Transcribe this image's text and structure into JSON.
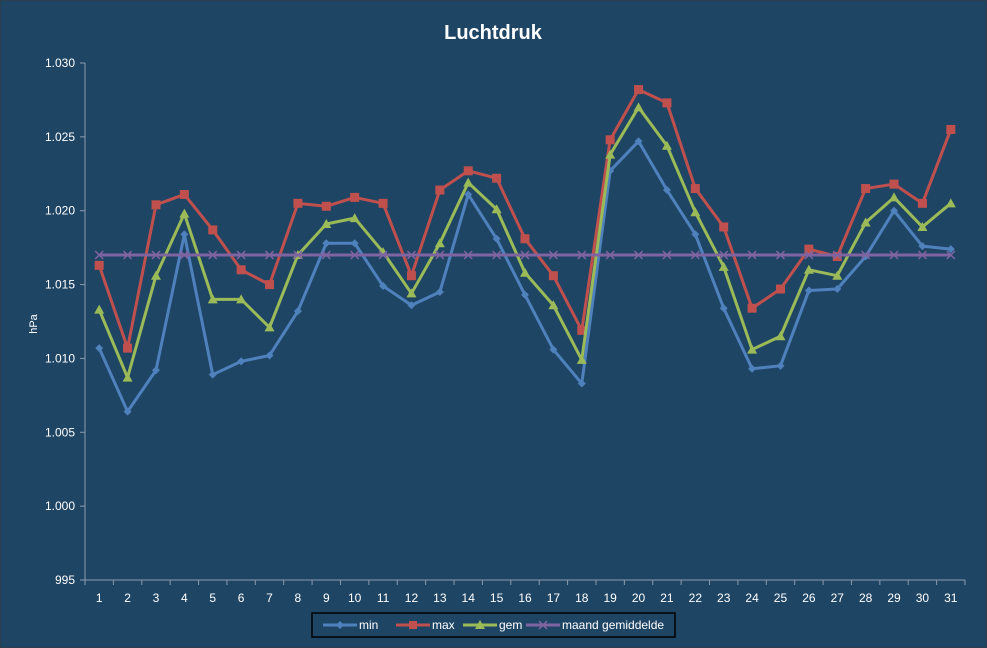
{
  "chart_data": {
    "type": "line",
    "title": "Luchtdruk",
    "xlabel": "",
    "ylabel": "hPa",
    "ylim": [
      995,
      1030
    ],
    "ytick_values": [
      995,
      1000,
      1005,
      1010,
      1015,
      1020,
      1025,
      1030
    ],
    "ytick_labels": [
      "995",
      "1.000",
      "1.005",
      "1.010",
      "1.015",
      "1.020",
      "1.025",
      "1.030"
    ],
    "categories": [
      "1",
      "2",
      "3",
      "4",
      "5",
      "6",
      "7",
      "8",
      "9",
      "10",
      "11",
      "12",
      "13",
      "14",
      "15",
      "16",
      "17",
      "18",
      "19",
      "20",
      "21",
      "22",
      "23",
      "24",
      "25",
      "26",
      "27",
      "28",
      "29",
      "30",
      "31"
    ],
    "grid": false,
    "legend_position": "bottom",
    "series": [
      {
        "name": "min",
        "color": "#4f81bd",
        "marker": "diamond",
        "values": [
          1010.7,
          1006.4,
          1009.2,
          1018.4,
          1008.9,
          1009.8,
          1010.2,
          1013.2,
          1017.8,
          1017.8,
          1014.9,
          1013.6,
          1014.5,
          1021.1,
          1018.1,
          1014.3,
          1010.6,
          1008.3,
          1022.7,
          1024.7,
          1021.4,
          1018.4,
          1013.4,
          1009.3,
          1009.5,
          1014.6,
          1014.7,
          1016.9,
          1020.0,
          1017.6,
          1017.4
        ]
      },
      {
        "name": "max",
        "color": "#c0504d",
        "marker": "square",
        "values": [
          1016.3,
          1010.7,
          1020.4,
          1021.1,
          1018.7,
          1016.0,
          1015.0,
          1020.5,
          1020.3,
          1020.9,
          1020.5,
          1015.6,
          1021.4,
          1022.7,
          1022.2,
          1018.1,
          1015.6,
          1011.9,
          1024.8,
          1028.2,
          1027.3,
          1021.5,
          1018.9,
          1013.4,
          1014.7,
          1017.4,
          1016.9,
          1021.5,
          1021.8,
          1020.5,
          1025.5
        ]
      },
      {
        "name": "gem",
        "color": "#9bbb59",
        "marker": "triangle",
        "values": [
          1013.3,
          1008.7,
          1015.6,
          1019.8,
          1014.0,
          1014.0,
          1012.1,
          1017.0,
          1019.1,
          1019.5,
          1017.2,
          1014.4,
          1017.8,
          1021.9,
          1020.1,
          1015.8,
          1013.6,
          1009.9,
          1023.8,
          1027.0,
          1024.4,
          1019.9,
          1016.2,
          1010.6,
          1011.5,
          1016.0,
          1015.6,
          1019.2,
          1020.9,
          1018.9,
          1020.5
        ]
      },
      {
        "name": "maand gemiddelde",
        "color": "#8064a2",
        "marker": "x",
        "values": [
          1017.0,
          1017.0,
          1017.0,
          1017.0,
          1017.0,
          1017.0,
          1017.0,
          1017.0,
          1017.0,
          1017.0,
          1017.0,
          1017.0,
          1017.0,
          1017.0,
          1017.0,
          1017.0,
          1017.0,
          1017.0,
          1017.0,
          1017.0,
          1017.0,
          1017.0,
          1017.0,
          1017.0,
          1017.0,
          1017.0,
          1017.0,
          1017.0,
          1017.0,
          1017.0,
          1017.0
        ]
      }
    ]
  }
}
